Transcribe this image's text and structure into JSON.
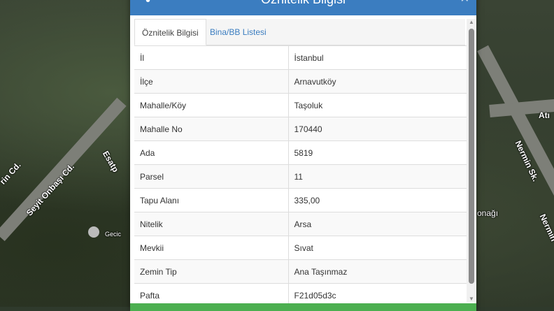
{
  "map": {
    "labels": [
      "Seyit Onbaşı Cd.",
      "Esatp",
      "rin Cd.",
      "Nermin Sk.",
      "Atı",
      "onağı",
      "Nermin",
      "Gecic"
    ]
  },
  "dialog": {
    "title": "Öznitelik Bilgisi",
    "tabs": [
      {
        "label": "Öznitelik Bilgisi",
        "active": true
      },
      {
        "label": "Bina/BB Listesi",
        "active": false
      }
    ],
    "rows": [
      {
        "key": "İl",
        "value": "İstanbul"
      },
      {
        "key": "İlçe",
        "value": "Arnavutköy"
      },
      {
        "key": "Mahalle/Köy",
        "value": "Taşoluk"
      },
      {
        "key": "Mahalle No",
        "value": "170440"
      },
      {
        "key": "Ada",
        "value": "5819"
      },
      {
        "key": "Parsel",
        "value": "11"
      },
      {
        "key": "Tapu Alanı",
        "value": "335,00"
      },
      {
        "key": "Nitelik",
        "value": "Arsa"
      },
      {
        "key": "Mevkii",
        "value": "Sıvat"
      },
      {
        "key": "Zemin Tip",
        "value": "Ana Taşınmaz"
      },
      {
        "key": "Pafta",
        "value": "F21d05d3c"
      }
    ],
    "colors": {
      "header": "#3b7dc0",
      "footer": "#4caf50"
    }
  }
}
